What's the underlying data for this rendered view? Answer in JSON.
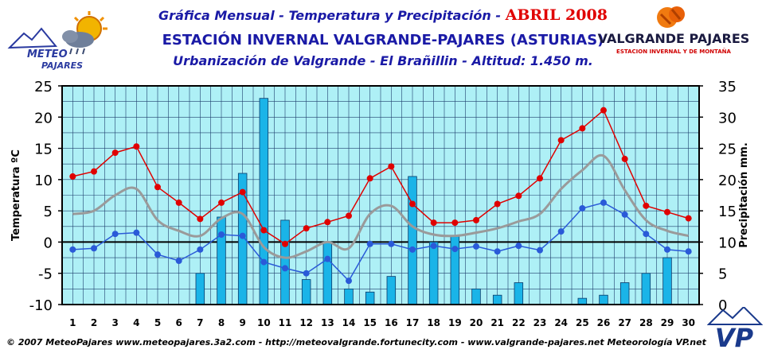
{
  "header": {
    "line1_prefix": "Gráfica Mensual - Temperatura y Precipitación -",
    "line1_highlight": "ABRIL 2008",
    "line2": "ESTACIÓN INVERNAL VALGRANDE-PAJARES (ASTURIAS)",
    "line3": "Urbanización de Valgrande - El Brañillin - Altitud: 1.450 m."
  },
  "logos": {
    "left_line1": "METEO",
    "left_line2": "PAJARES",
    "right_title": "VALGRANDE PAJARES",
    "right_subtitle": "ESTACION INVERNAL Y DE MONTAÑA",
    "vp": "VP"
  },
  "footer": "© 2007 MeteoPajares www.meteopajares.3a2.com - http://meteovalgrande.fortunecity.com - www.valgrande-pajares.net Meteorología VP.net",
  "colors": {
    "plot_bg": "#aef0f6",
    "bar": "#1ab4e8",
    "max_line": "#e00000",
    "min_line": "#2a5ad8",
    "avg_line": "#9a9a9a",
    "grid": "#1e3f6e"
  },
  "chart_data": {
    "type": "bar",
    "ylabel": "Temperatura ºC",
    "y2label": "Precipitación mm.",
    "ylim": [
      -10,
      25
    ],
    "y2lim": [
      0,
      35
    ],
    "yticks": [
      "25",
      "20",
      "15",
      "10",
      "5",
      "0",
      "-5",
      "-10"
    ],
    "y2ticks": [
      "35",
      "30",
      "25",
      "20",
      "15",
      "10",
      "5",
      "0"
    ],
    "categories": [
      "1",
      "2",
      "3",
      "4",
      "5",
      "6",
      "7",
      "8",
      "9",
      "10",
      "11",
      "12",
      "13",
      "14",
      "15",
      "16",
      "17",
      "18",
      "19",
      "20",
      "21",
      "22",
      "23",
      "24",
      "25",
      "26",
      "27",
      "28",
      "29",
      "30"
    ],
    "grid": true,
    "series": [
      {
        "values": [
          0,
          0,
          0,
          0,
          0,
          0,
          5,
          14,
          21,
          33,
          13.5,
          4,
          10,
          2.5,
          2,
          4.5,
          20.5,
          10,
          11,
          2.5,
          1.5,
          3.5,
          0,
          0,
          1,
          1.5,
          3.5,
          5,
          7.5,
          0
        ]
      },
      {
        "values": [
          10.5,
          11.3,
          14.3,
          15.3,
          8.8,
          6.3,
          3.7,
          6.3,
          8.0,
          1.9,
          -0.3,
          2.2,
          3.2,
          4.2,
          10.2,
          12.1,
          6.1,
          3.1,
          3.1,
          3.5,
          6.1,
          7.4,
          10.2,
          16.3,
          18.2,
          21.1,
          13.3,
          5.8,
          4.8,
          3.8
        ]
      },
      {
        "values": [
          -1.2,
          -1.0,
          1.3,
          1.5,
          -2.0,
          -3.0,
          -1.2,
          1.2,
          1.0,
          -3.2,
          -4.2,
          -5.0,
          -2.7,
          -6.2,
          -0.3,
          -0.3,
          -1.2,
          -0.6,
          -1.1,
          -0.7,
          -1.5,
          -0.6,
          -1.3,
          1.7,
          5.4,
          6.3,
          4.4,
          1.3,
          -1.2,
          -1.5
        ]
      },
      {
        "values": [
          4.5,
          5.0,
          7.5,
          8.5,
          3.5,
          1.8,
          1.0,
          3.8,
          4.5,
          -0.8,
          -2.5,
          -1.5,
          0.0,
          -1.0,
          4.5,
          5.8,
          2.5,
          1.2,
          1.0,
          1.5,
          2.2,
          3.3,
          4.5,
          8.5,
          11.5,
          13.8,
          8.3,
          3.5,
          1.8,
          1.0
        ]
      }
    ]
  }
}
